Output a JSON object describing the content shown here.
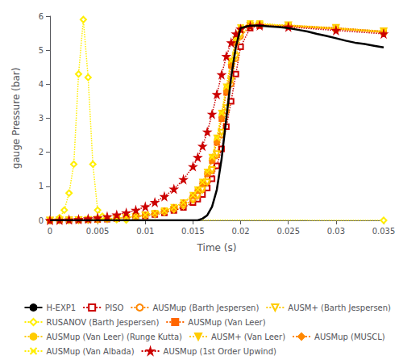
{
  "chart_data": {
    "type": "line",
    "xlabel": "Time (s)",
    "ylabel": "gauge Pressure (bar)",
    "xlim": [
      0,
      0.035
    ],
    "ylim": [
      0,
      6
    ],
    "xticks": [
      0,
      0.005,
      0.01,
      0.015,
      0.02,
      0.025,
      0.03,
      0.035
    ],
    "yticks": [
      0,
      1,
      2,
      3,
      4,
      5,
      6
    ],
    "grid": false,
    "legend": "lower right",
    "series": [
      {
        "name": "H-EXP1",
        "color": "#000000",
        "line_style": "solid",
        "x": [
          0.0,
          0.0155,
          0.016,
          0.0165,
          0.017,
          0.0175,
          0.018,
          0.0185,
          0.019,
          0.0195,
          0.02,
          0.021,
          0.022,
          0.023,
          0.024,
          0.025,
          0.026,
          0.027,
          0.028,
          0.029,
          0.03,
          0.031,
          0.032,
          0.033,
          0.034,
          0.035
        ],
        "values": [
          0.0,
          0.0,
          0.05,
          0.15,
          0.4,
          0.9,
          1.8,
          3.0,
          4.2,
          5.1,
          5.65,
          5.72,
          5.72,
          5.7,
          5.68,
          5.65,
          5.6,
          5.55,
          5.48,
          5.42,
          5.35,
          5.28,
          5.22,
          5.18,
          5.13,
          5.08
        ]
      },
      {
        "name": "PISO",
        "color": "#cc0000",
        "line_style": "dotted",
        "marker": "open_square",
        "x": [
          0.0,
          0.001,
          0.002,
          0.003,
          0.004,
          0.005,
          0.006,
          0.007,
          0.008,
          0.009,
          0.01,
          0.011,
          0.012,
          0.013,
          0.014,
          0.015,
          0.0155,
          0.016,
          0.0165,
          0.017,
          0.0175,
          0.018,
          0.0185,
          0.019,
          0.0195,
          0.02,
          0.021,
          0.022,
          0.025,
          0.03,
          0.035
        ],
        "values": [
          0.0,
          0.003,
          0.006,
          0.01,
          0.016,
          0.025,
          0.038,
          0.055,
          0.075,
          0.1,
          0.13,
          0.17,
          0.22,
          0.29,
          0.38,
          0.52,
          0.62,
          0.76,
          0.95,
          1.22,
          1.6,
          2.1,
          2.75,
          3.5,
          4.3,
          5.1,
          5.65,
          5.72,
          5.72,
          5.65,
          5.55
        ]
      },
      {
        "name": "AUSMup (Barth Jespersen)",
        "color": "#ff8800",
        "line_style": "dotted",
        "marker": "open_circle",
        "x": [
          0.0,
          0.001,
          0.002,
          0.003,
          0.004,
          0.005,
          0.006,
          0.007,
          0.008,
          0.009,
          0.01,
          0.011,
          0.012,
          0.013,
          0.014,
          0.015,
          0.0155,
          0.016,
          0.0165,
          0.017,
          0.0175,
          0.018,
          0.0185,
          0.019,
          0.0195,
          0.02,
          0.021,
          0.022,
          0.025,
          0.03,
          0.035
        ],
        "values": [
          0.0,
          0.003,
          0.006,
          0.01,
          0.016,
          0.025,
          0.038,
          0.055,
          0.078,
          0.105,
          0.14,
          0.18,
          0.24,
          0.32,
          0.43,
          0.6,
          0.72,
          0.9,
          1.12,
          1.45,
          1.9,
          2.5,
          3.2,
          4.0,
          4.75,
          5.4,
          5.7,
          5.73,
          5.73,
          5.65,
          5.55
        ]
      },
      {
        "name": "AUSM+ (Barth Jespersen)",
        "color": "#ffcc00",
        "line_style": "dotted",
        "marker": "open_triangle_down",
        "x": [
          0.0,
          0.001,
          0.002,
          0.003,
          0.004,
          0.005,
          0.006,
          0.007,
          0.008,
          0.009,
          0.01,
          0.011,
          0.012,
          0.013,
          0.014,
          0.015,
          0.0155,
          0.016,
          0.0165,
          0.017,
          0.0175,
          0.018,
          0.0185,
          0.019,
          0.0195,
          0.02,
          0.021,
          0.022,
          0.025,
          0.03,
          0.035
        ],
        "values": [
          0.0,
          0.003,
          0.006,
          0.01,
          0.016,
          0.025,
          0.038,
          0.055,
          0.078,
          0.105,
          0.14,
          0.18,
          0.24,
          0.32,
          0.43,
          0.6,
          0.72,
          0.9,
          1.12,
          1.48,
          1.95,
          2.58,
          3.3,
          4.1,
          4.82,
          5.45,
          5.72,
          5.74,
          5.74,
          5.66,
          5.56
        ]
      },
      {
        "name": "RUSANOV (Barth Jespersen)",
        "color": "#ffee00",
        "line_style": "dotted",
        "marker": "open_diamond",
        "x": [
          0.0,
          0.001,
          0.0015,
          0.002,
          0.0025,
          0.003,
          0.0035,
          0.004,
          0.0045,
          0.005,
          0.0055,
          0.006,
          0.007,
          0.008,
          0.035
        ],
        "values": [
          0.0,
          0.08,
          0.3,
          0.8,
          1.65,
          4.3,
          5.9,
          4.2,
          1.65,
          0.3,
          0.12,
          0.05,
          0.02,
          0.01,
          0.0
        ]
      },
      {
        "name": "AUSMup (Van Leer)",
        "color": "#ff6600",
        "line_style": "dotted",
        "marker": "square",
        "x": [
          0.0,
          0.001,
          0.002,
          0.003,
          0.004,
          0.005,
          0.006,
          0.007,
          0.008,
          0.009,
          0.01,
          0.011,
          0.012,
          0.013,
          0.014,
          0.015,
          0.0155,
          0.016,
          0.0165,
          0.017,
          0.0175,
          0.018,
          0.0185,
          0.019,
          0.0195,
          0.02,
          0.021,
          0.022,
          0.025,
          0.03,
          0.035
        ],
        "values": [
          0.0,
          0.003,
          0.007,
          0.012,
          0.019,
          0.03,
          0.044,
          0.063,
          0.088,
          0.12,
          0.16,
          0.21,
          0.28,
          0.38,
          0.52,
          0.72,
          0.87,
          1.08,
          1.36,
          1.75,
          2.28,
          2.98,
          3.75,
          4.55,
          5.22,
          5.6,
          5.75,
          5.75,
          5.7,
          5.62,
          5.52
        ]
      },
      {
        "name": "AUSMup (Van Leer) (Runge Kutta)",
        "color": "#ffcc00",
        "line_style": "dotted",
        "marker": "circle",
        "x": [
          0.0,
          0.001,
          0.002,
          0.003,
          0.004,
          0.005,
          0.006,
          0.007,
          0.008,
          0.009,
          0.01,
          0.011,
          0.012,
          0.013,
          0.014,
          0.015,
          0.0155,
          0.016,
          0.0165,
          0.017,
          0.0175,
          0.018,
          0.0185,
          0.019,
          0.0195,
          0.02,
          0.021,
          0.022,
          0.025,
          0.03,
          0.035
        ],
        "values": [
          0.0,
          0.003,
          0.007,
          0.012,
          0.019,
          0.03,
          0.044,
          0.063,
          0.088,
          0.12,
          0.16,
          0.21,
          0.28,
          0.38,
          0.52,
          0.74,
          0.9,
          1.12,
          1.4,
          1.82,
          2.38,
          3.1,
          3.88,
          4.65,
          5.28,
          5.65,
          5.78,
          5.78,
          5.72,
          5.63,
          5.53
        ]
      },
      {
        "name": "AUSM+ (Van Leer)",
        "color": "#ffcc00",
        "line_style": "dotted",
        "marker": "triangle_down",
        "x": [
          0.0,
          0.001,
          0.002,
          0.003,
          0.004,
          0.005,
          0.006,
          0.007,
          0.008,
          0.009,
          0.01,
          0.011,
          0.012,
          0.013,
          0.014,
          0.015,
          0.0155,
          0.016,
          0.0165,
          0.017,
          0.0175,
          0.018,
          0.0185,
          0.019,
          0.0195,
          0.02,
          0.021,
          0.022,
          0.025,
          0.03,
          0.035
        ],
        "values": [
          0.0,
          0.003,
          0.007,
          0.012,
          0.019,
          0.03,
          0.044,
          0.063,
          0.088,
          0.12,
          0.16,
          0.21,
          0.28,
          0.38,
          0.52,
          0.74,
          0.9,
          1.12,
          1.42,
          1.85,
          2.42,
          3.15,
          3.92,
          4.68,
          5.3,
          5.66,
          5.78,
          5.78,
          5.72,
          5.63,
          5.53
        ]
      },
      {
        "name": "AUSMup (MUSCL)",
        "color": "#ff8800",
        "line_style": "dotted",
        "marker": "diamond",
        "x": [
          0.0,
          0.001,
          0.002,
          0.003,
          0.004,
          0.005,
          0.006,
          0.007,
          0.008,
          0.009,
          0.01,
          0.011,
          0.012,
          0.013,
          0.014,
          0.015,
          0.0155,
          0.016,
          0.0165,
          0.017,
          0.0175,
          0.018,
          0.0185,
          0.019,
          0.0195,
          0.02,
          0.021,
          0.022,
          0.025,
          0.03,
          0.035
        ],
        "values": [
          0.0,
          0.003,
          0.007,
          0.012,
          0.019,
          0.03,
          0.044,
          0.063,
          0.088,
          0.12,
          0.16,
          0.21,
          0.28,
          0.38,
          0.52,
          0.72,
          0.87,
          1.08,
          1.36,
          1.76,
          2.3,
          3.02,
          3.8,
          4.58,
          5.24,
          5.62,
          5.75,
          5.75,
          5.7,
          5.62,
          5.52
        ]
      },
      {
        "name": "AUSMup (Van Albada)",
        "color": "#ffee00",
        "line_style": "dotted",
        "marker": "x",
        "x": [
          0.0,
          0.001,
          0.002,
          0.003,
          0.004,
          0.005,
          0.006,
          0.007,
          0.008,
          0.009,
          0.01,
          0.011,
          0.012,
          0.013,
          0.014,
          0.015,
          0.0155,
          0.016,
          0.0165,
          0.017,
          0.0175,
          0.018,
          0.0185,
          0.019,
          0.0195,
          0.02,
          0.021,
          0.022,
          0.025,
          0.03,
          0.035
        ],
        "values": [
          0.0,
          0.003,
          0.007,
          0.012,
          0.019,
          0.03,
          0.044,
          0.063,
          0.088,
          0.12,
          0.16,
          0.21,
          0.28,
          0.38,
          0.52,
          0.74,
          0.9,
          1.12,
          1.42,
          1.85,
          2.42,
          3.15,
          3.92,
          4.68,
          5.3,
          5.66,
          5.78,
          5.78,
          5.72,
          5.63,
          5.53
        ]
      },
      {
        "name": "AUSMup (1st Order Upwind)",
        "color": "#cc0000",
        "line_style": "dotted",
        "marker": "star",
        "x": [
          0.0,
          0.001,
          0.002,
          0.003,
          0.004,
          0.005,
          0.006,
          0.007,
          0.008,
          0.009,
          0.01,
          0.011,
          0.012,
          0.013,
          0.014,
          0.015,
          0.0155,
          0.016,
          0.0165,
          0.017,
          0.0175,
          0.018,
          0.0185,
          0.019,
          0.0195,
          0.02,
          0.021,
          0.022,
          0.025,
          0.03,
          0.035
        ],
        "values": [
          0.0,
          0.006,
          0.015,
          0.028,
          0.048,
          0.075,
          0.11,
          0.16,
          0.22,
          0.3,
          0.4,
          0.53,
          0.7,
          0.92,
          1.2,
          1.58,
          1.85,
          2.18,
          2.6,
          3.12,
          3.7,
          4.28,
          4.82,
          5.22,
          5.48,
          5.62,
          5.7,
          5.72,
          5.68,
          5.58,
          5.48
        ]
      }
    ]
  }
}
